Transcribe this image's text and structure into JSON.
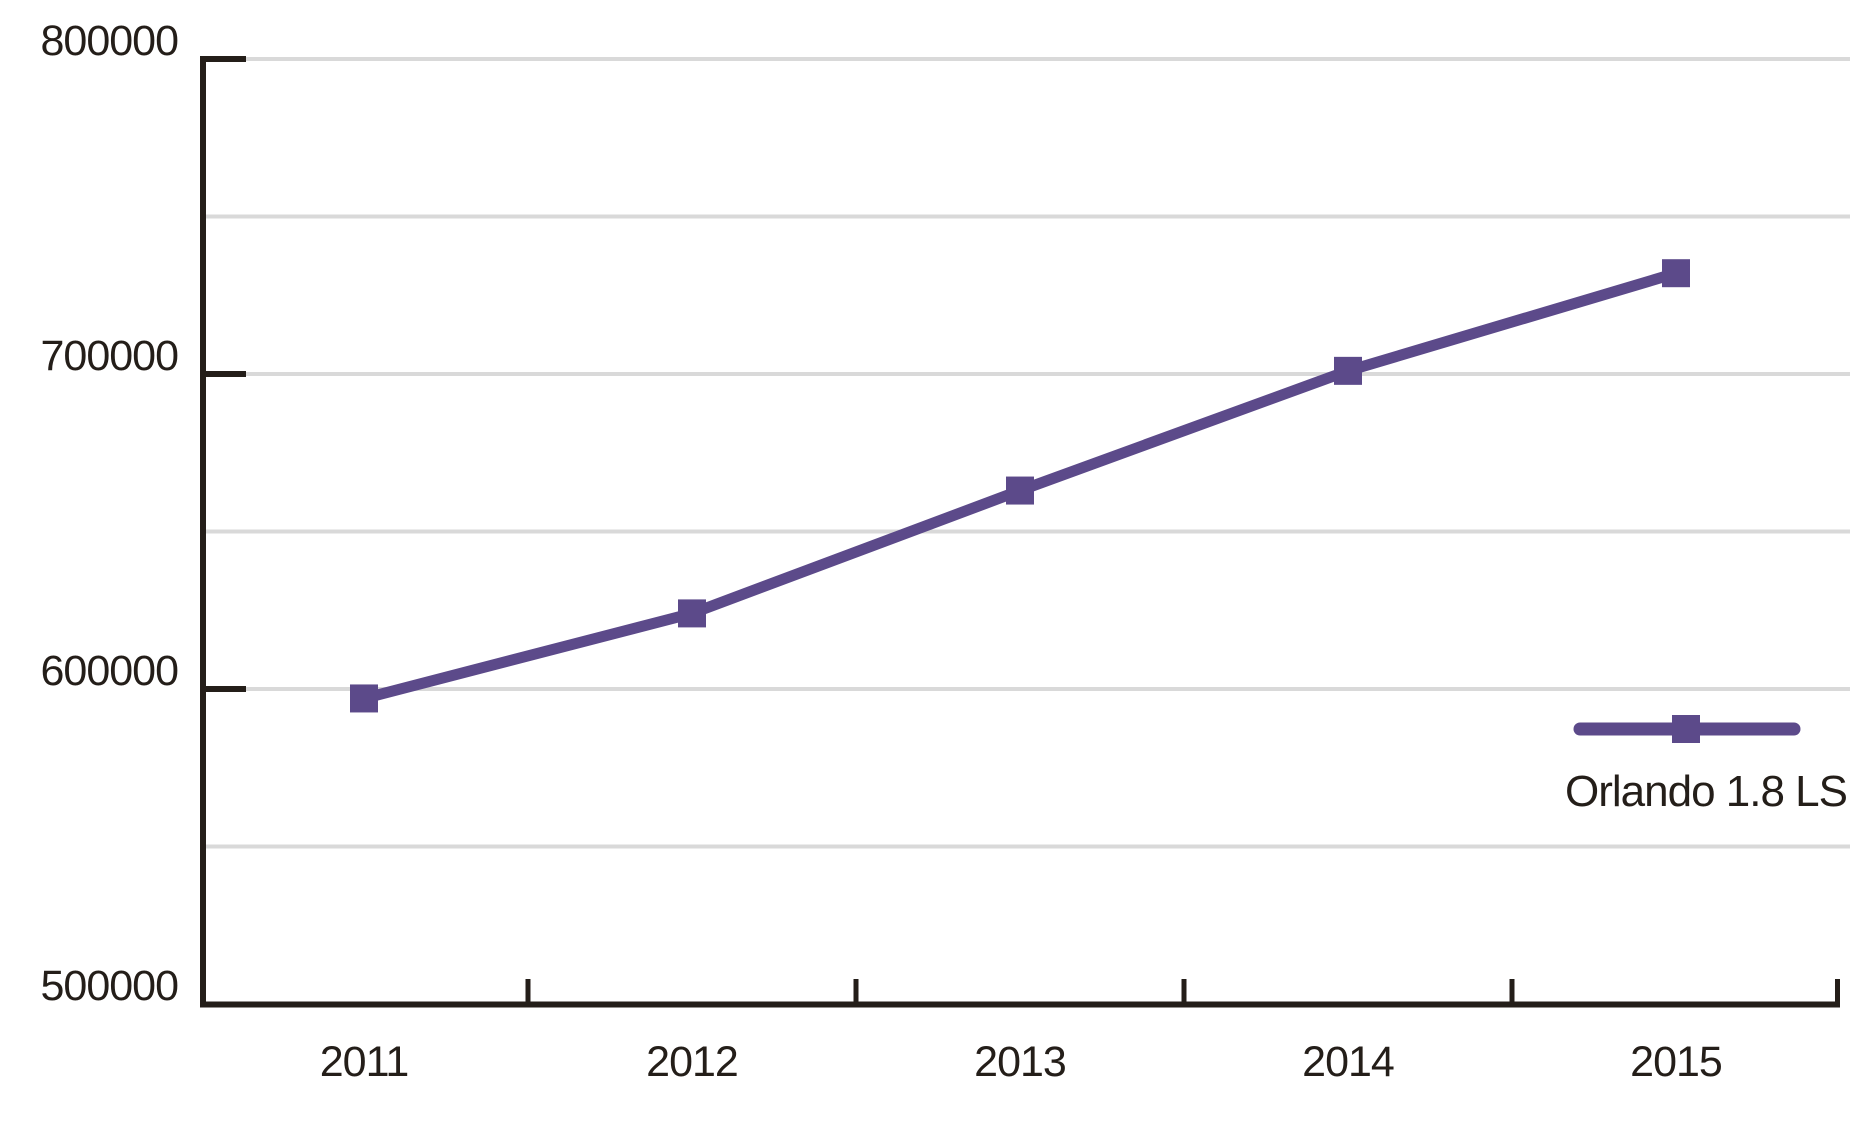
{
  "chart_data": {
    "type": "line",
    "title": "",
    "xlabel": "",
    "ylabel": "",
    "categories": [
      "2011",
      "2012",
      "2013",
      "2014",
      "2015"
    ],
    "series": [
      {
        "name": "Orlando 1.8 LS",
        "marker": "square",
        "values": [
          597000,
          624000,
          663000,
          701000,
          732000
        ]
      }
    ],
    "ylim": [
      500000,
      800000
    ],
    "yticks_labeled": [
      500000,
      600000,
      700000,
      800000
    ],
    "ytick_labels": [
      "500000",
      "600000",
      "700000",
      "800000"
    ],
    "grid": true,
    "grid_interval": 50000,
    "legend_position": "right-inside",
    "colors": {
      "series": "#5c4a8a",
      "axis": "#241e19",
      "text": "#241e19",
      "grid": "#d9d9d9",
      "background": "#ffffff"
    }
  }
}
